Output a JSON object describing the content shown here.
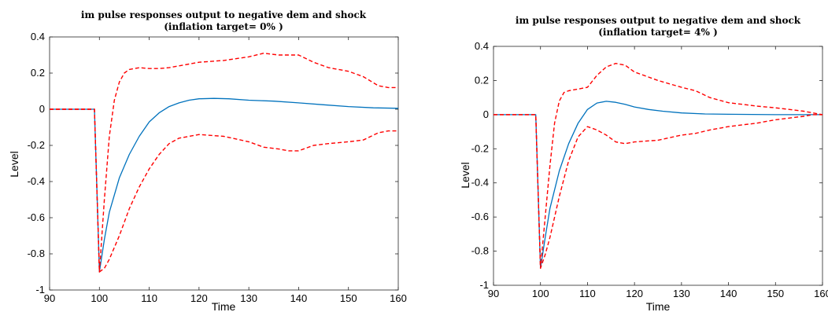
{
  "chart_data": [
    {
      "type": "line",
      "title": "im pulse responses output to negative dem and shock",
      "subtitle": "(inflation target= 0% )",
      "xlabel": "Time",
      "ylabel": "Level",
      "xlim": [
        90,
        160
      ],
      "ylim": [
        -1,
        0.4
      ],
      "xticks": [
        90,
        100,
        110,
        120,
        130,
        140,
        150,
        160
      ],
      "yticks": [
        -1,
        -0.8,
        -0.6,
        -0.4,
        -0.2,
        0,
        0.2,
        0.4
      ],
      "ytick_labels": [
        "-1",
        "-0.8",
        "-0.6",
        "-0.4",
        "-0.2",
        "0",
        "0.2",
        "0.4"
      ],
      "grid": false,
      "series": [
        {
          "style": "solid",
          "color": "#0072BD",
          "x": [
            90,
            99,
            100,
            101,
            102,
            104,
            106,
            108,
            110,
            112,
            114,
            116,
            118,
            120,
            123,
            126,
            130,
            135,
            140,
            145,
            150,
            155,
            160
          ],
          "y": [
            0,
            0,
            -0.9,
            -0.72,
            -0.57,
            -0.38,
            -0.25,
            -0.15,
            -0.07,
            -0.02,
            0.015,
            0.035,
            0.05,
            0.058,
            0.06,
            0.058,
            0.05,
            0.045,
            0.035,
            0.025,
            0.015,
            0.008,
            0.005
          ]
        },
        {
          "style": "dashed",
          "color": "#FF0000",
          "x": [
            90,
            99,
            100,
            101,
            102,
            103,
            104,
            105,
            106,
            108,
            110,
            112,
            114,
            116,
            118,
            120,
            125,
            130,
            133,
            136,
            138,
            140,
            143,
            146,
            150,
            153,
            156,
            158,
            160
          ],
          "y": [
            0,
            0,
            -0.9,
            -0.5,
            -0.15,
            0.05,
            0.15,
            0.2,
            0.22,
            0.23,
            0.225,
            0.225,
            0.23,
            0.24,
            0.25,
            0.26,
            0.27,
            0.29,
            0.31,
            0.3,
            0.3,
            0.3,
            0.26,
            0.23,
            0.21,
            0.18,
            0.13,
            0.12,
            0.12
          ]
        },
        {
          "style": "dashed",
          "color": "#FF0000",
          "x": [
            90,
            99,
            100,
            101,
            102,
            104,
            106,
            108,
            110,
            112,
            114,
            116,
            118,
            120,
            125,
            130,
            133,
            136,
            138,
            140,
            143,
            146,
            150,
            153,
            156,
            158,
            160
          ],
          "y": [
            0,
            0,
            -0.9,
            -0.88,
            -0.83,
            -0.7,
            -0.55,
            -0.43,
            -0.33,
            -0.25,
            -0.19,
            -0.16,
            -0.15,
            -0.14,
            -0.15,
            -0.18,
            -0.21,
            -0.22,
            -0.23,
            -0.23,
            -0.2,
            -0.19,
            -0.18,
            -0.17,
            -0.13,
            -0.12,
            -0.12
          ]
        }
      ]
    },
    {
      "type": "line",
      "title": "im pulse responses output to negative dem and shock",
      "subtitle": "(inflation target= 4% )",
      "xlabel": "Time",
      "ylabel": "Level",
      "xlim": [
        90,
        160
      ],
      "ylim": [
        -1,
        0.4
      ],
      "xticks": [
        90,
        100,
        110,
        120,
        130,
        140,
        150,
        160
      ],
      "yticks": [
        -1,
        -0.8,
        -0.6,
        -0.4,
        -0.2,
        0,
        0.2,
        0.4
      ],
      "ytick_labels": [
        "-1",
        "-0.8",
        "-0.6",
        "-0.4",
        "-0.2",
        "0",
        "0.2",
        "0.4"
      ],
      "grid": false,
      "series": [
        {
          "style": "solid",
          "color": "#0072BD",
          "x": [
            90,
            99,
            100,
            101,
            102,
            104,
            106,
            108,
            110,
            112,
            114,
            116,
            118,
            120,
            123,
            126,
            130,
            135,
            140,
            145,
            150,
            155,
            160
          ],
          "y": [
            0,
            0,
            -0.9,
            -0.72,
            -0.55,
            -0.33,
            -0.17,
            -0.05,
            0.03,
            0.068,
            0.078,
            0.072,
            0.06,
            0.045,
            0.03,
            0.02,
            0.01,
            0.004,
            0.002,
            0.001,
            0.0,
            0.0,
            0.0
          ]
        },
        {
          "style": "dashed",
          "color": "#FF0000",
          "x": [
            90,
            99,
            100,
            101,
            102,
            103,
            104,
            105,
            106,
            108,
            110,
            112,
            114,
            116,
            118,
            120,
            125,
            130,
            133,
            136,
            140,
            143,
            146,
            150,
            153,
            156,
            158,
            160
          ],
          "y": [
            0,
            0,
            -0.9,
            -0.6,
            -0.3,
            -0.05,
            0.08,
            0.13,
            0.14,
            0.15,
            0.16,
            0.23,
            0.28,
            0.3,
            0.29,
            0.25,
            0.2,
            0.16,
            0.14,
            0.1,
            0.07,
            0.06,
            0.05,
            0.04,
            0.03,
            0.02,
            0.01,
            0.0
          ]
        },
        {
          "style": "dashed",
          "color": "#FF0000",
          "x": [
            90,
            99,
            100,
            101,
            102,
            104,
            106,
            108,
            110,
            112,
            114,
            116,
            118,
            120,
            125,
            130,
            133,
            136,
            140,
            143,
            146,
            150,
            153,
            156,
            158,
            160
          ],
          "y": [
            0,
            0,
            -0.9,
            -0.82,
            -0.72,
            -0.48,
            -0.27,
            -0.13,
            -0.07,
            -0.09,
            -0.12,
            -0.16,
            -0.17,
            -0.16,
            -0.15,
            -0.12,
            -0.11,
            -0.09,
            -0.07,
            -0.06,
            -0.05,
            -0.03,
            -0.02,
            -0.01,
            0.0,
            0.0
          ]
        }
      ]
    }
  ]
}
